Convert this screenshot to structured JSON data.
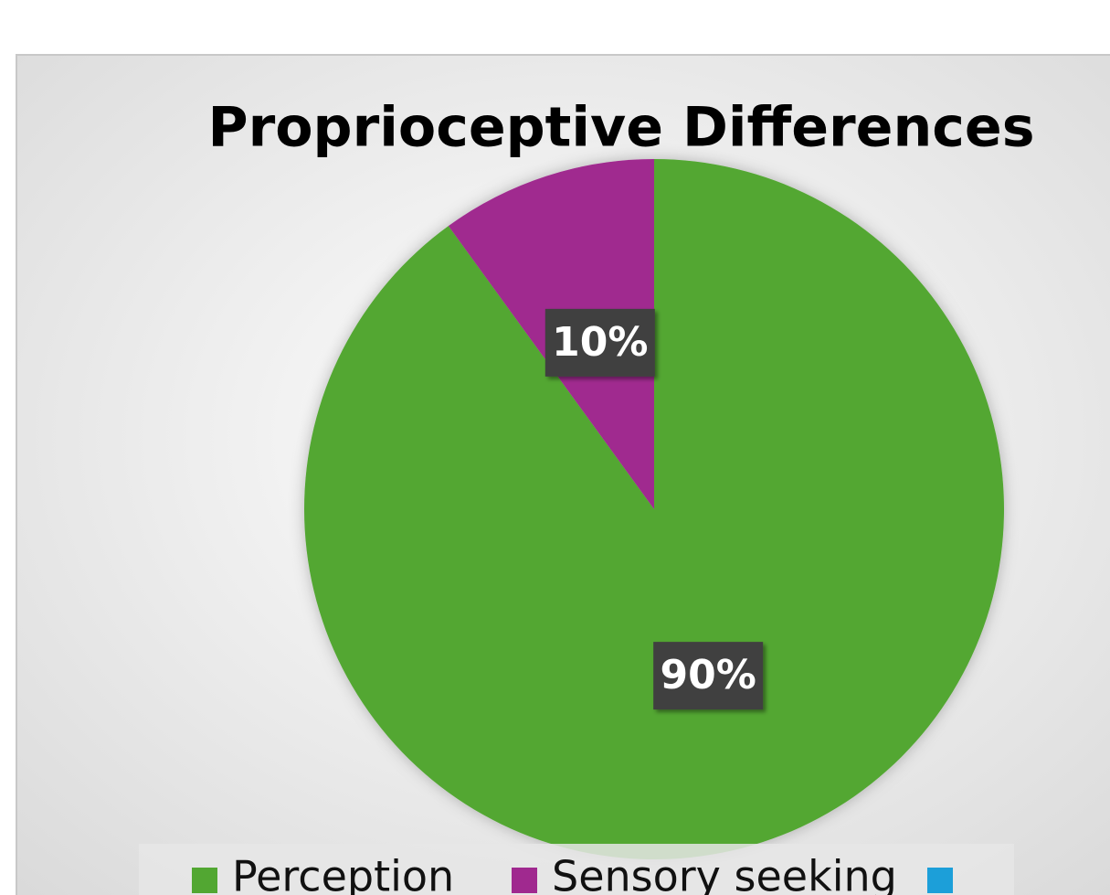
{
  "chart_data": {
    "type": "pie",
    "title": "Proprioceptive Differences",
    "categories": [
      "Perception",
      "Sensory seeking",
      null
    ],
    "values": [
      90,
      10,
      0
    ],
    "value_labels": [
      "90%",
      "10%",
      null
    ],
    "colors": [
      "#52a732",
      "#a0298f",
      "#1c9fd9"
    ],
    "legend": "bottom"
  }
}
